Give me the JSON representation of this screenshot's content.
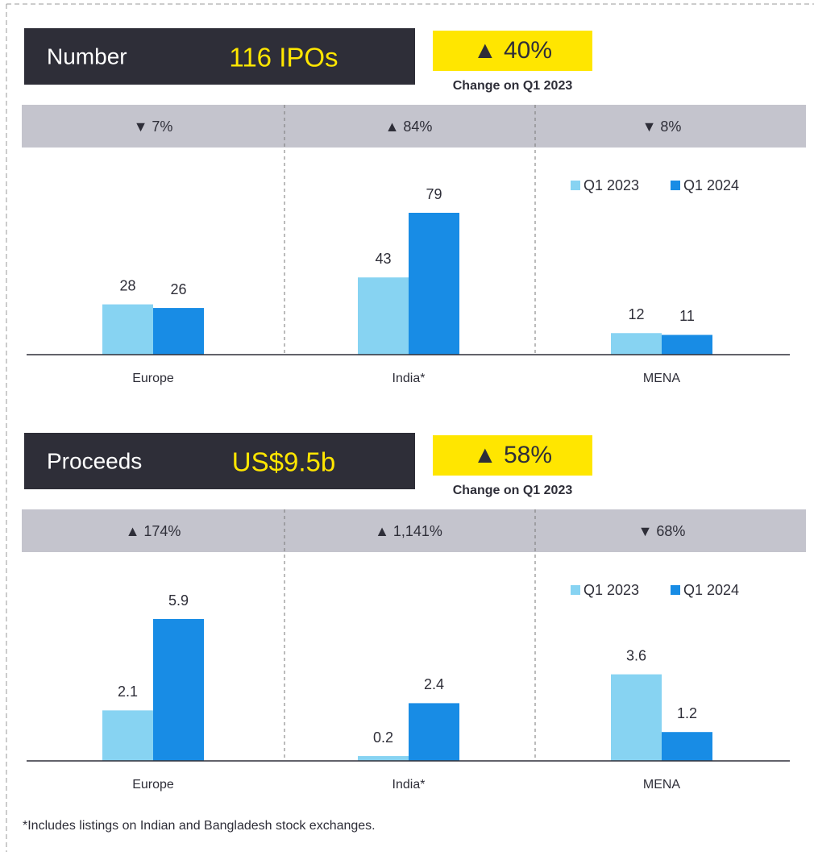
{
  "chart_data": [
    {
      "type": "bar",
      "label": "Number",
      "headline": "116 IPOs",
      "change": "▲ 40%",
      "change_note": "Change on Q1 2023",
      "categories": [
        "Europe",
        "India*",
        "MENA"
      ],
      "region_changes": [
        "▼ 7%",
        "▲ 84%",
        "▼ 8%"
      ],
      "series": [
        {
          "name": "Q1 2023",
          "color": "#87d3f2",
          "values": [
            28,
            43,
            12
          ]
        },
        {
          "name": "Q1 2024",
          "color": "#188ce5",
          "values": [
            26,
            79,
            11
          ]
        }
      ]
    },
    {
      "type": "bar",
      "label": "Proceeds",
      "headline": "US$9.5b",
      "change": "▲ 58%",
      "change_note": "Change on Q1 2023",
      "categories": [
        "Europe",
        "India*",
        "MENA"
      ],
      "region_changes": [
        "▲ 174%",
        "▲ 1,141%",
        "▼ 68%"
      ],
      "series": [
        {
          "name": "Q1 2023",
          "color": "#87d3f2",
          "values": [
            2.1,
            0.2,
            3.6
          ]
        },
        {
          "name": "Q1 2024",
          "color": "#188ce5",
          "values": [
            5.9,
            2.4,
            1.2
          ]
        }
      ]
    }
  ],
  "footnote": "*Includes listings on Indian and Bangladesh stock exchanges."
}
